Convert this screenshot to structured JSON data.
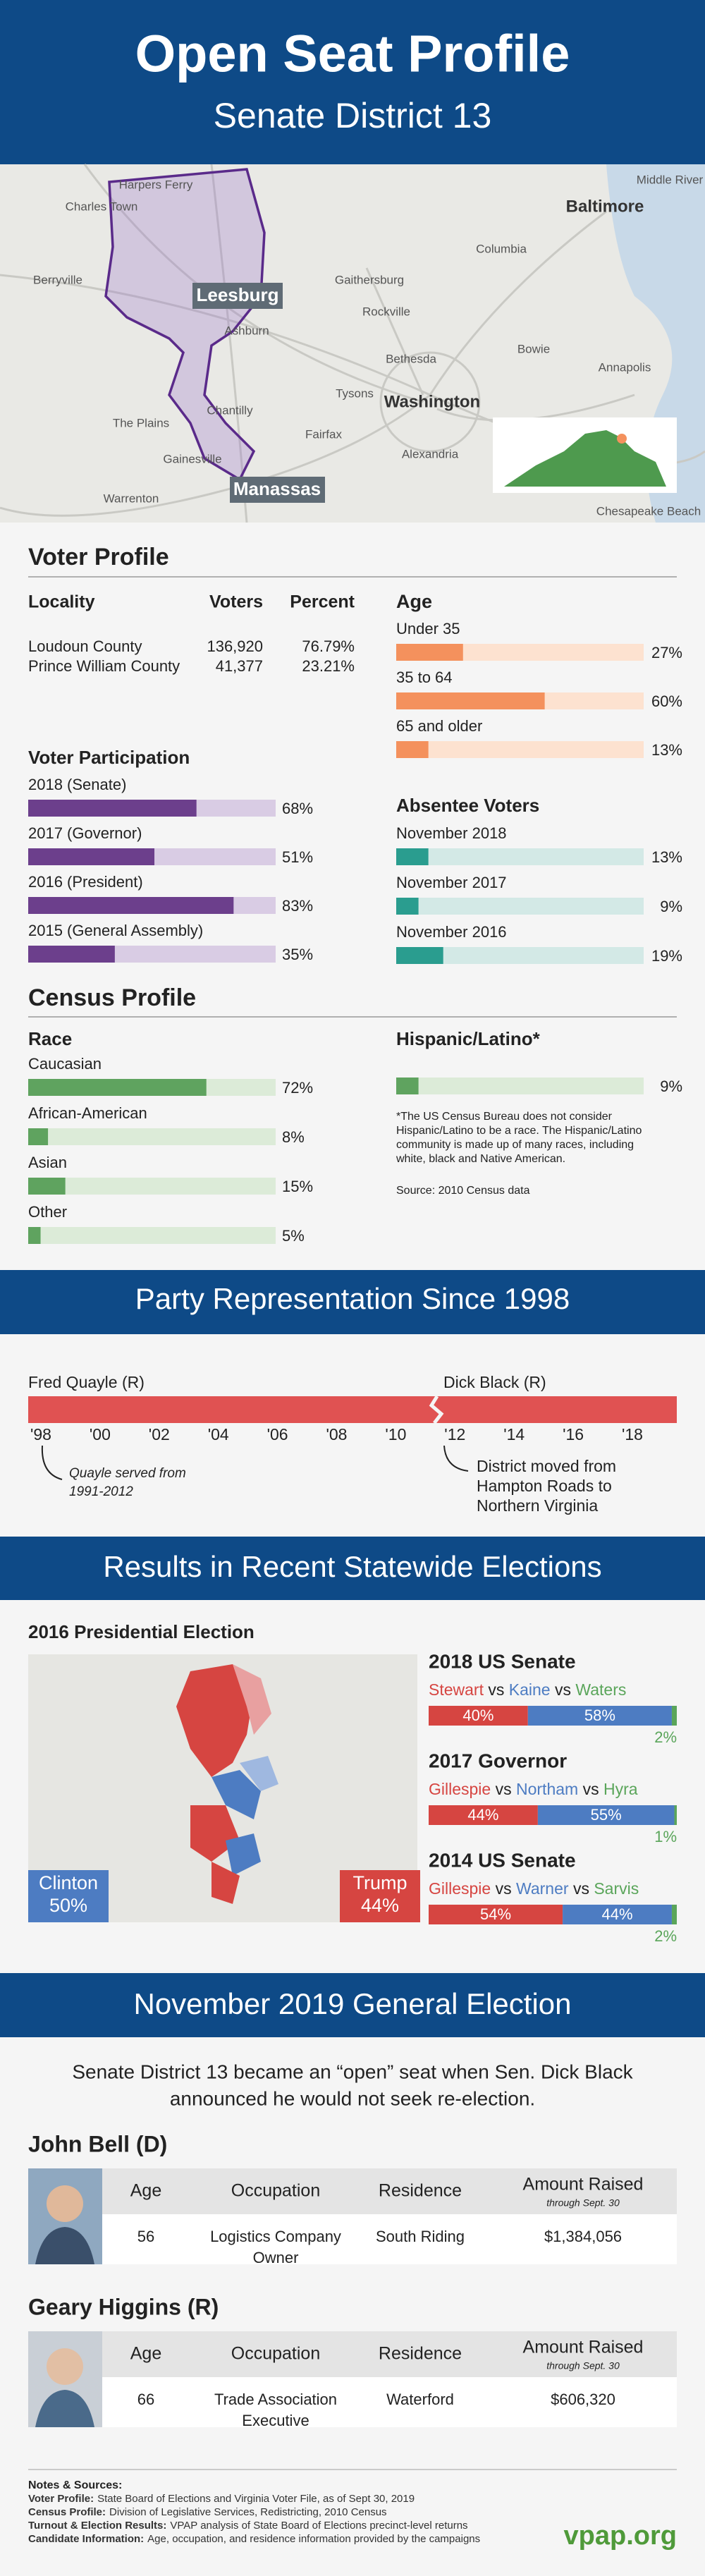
{
  "header": {
    "title": "Open Seat Profile",
    "subtitle": "Senate District 13"
  },
  "district_map": {
    "labels": [
      "Harpers Ferry",
      "Charles Town",
      "Middle River",
      "Baltimore",
      "Columbia",
      "Berryville",
      "Ashburn",
      "Gaithersburg",
      "Rockville",
      "Bowie",
      "Annapolis",
      "Bethesda",
      "Washington",
      "Chantilly",
      "Tysons",
      "Fairfax",
      "The Plains",
      "Gainesville",
      "Alexandria",
      "Warrenton",
      "Chesapeake Beach"
    ],
    "callouts": [
      "Leesburg",
      "Manassas"
    ]
  },
  "voter_profile": {
    "title": "Voter Profile",
    "locality": {
      "headers": [
        "Locality",
        "Voters",
        "Percent"
      ],
      "rows": [
        [
          "Loudoun County",
          "136,920",
          "76.79%"
        ],
        [
          "Prince William County",
          "41,377",
          "23.21%"
        ]
      ]
    },
    "age": {
      "title": "Age",
      "color": "#f4915d",
      "track": "#fde2d0",
      "bars": [
        {
          "label": "Under 35",
          "value": 27,
          "value_label": "27%"
        },
        {
          "label": "35 to 64",
          "value": 60,
          "value_label": "60%"
        },
        {
          "label": "65 and older",
          "value": 13,
          "value_label": "13%"
        }
      ]
    },
    "participation": {
      "title": "Voter Participation",
      "color": "#6c3f8c",
      "track": "#d9cce4",
      "bars": [
        {
          "label": "2018 (Senate)",
          "value": 68,
          "value_label": "68%"
        },
        {
          "label": "2017 (Governor)",
          "value": 51,
          "value_label": "51%"
        },
        {
          "label": "2016 (President)",
          "value": 83,
          "value_label": "83%"
        },
        {
          "label": "2015 (General Assembly)",
          "value": 35,
          "value_label": "35%"
        }
      ]
    },
    "absentee": {
      "title": "Absentee Voters",
      "color": "#2a9d8f",
      "track": "#d3e9e6",
      "bars": [
        {
          "label": "November 2018",
          "value": 13,
          "value_label": "13%"
        },
        {
          "label": "November 2017",
          "value": 9,
          "value_label": "9%"
        },
        {
          "label": "November 2016",
          "value": 19,
          "value_label": "19%"
        }
      ]
    }
  },
  "census_profile": {
    "title": "Census Profile",
    "race": {
      "title": "Race",
      "color": "#5fa35f",
      "track": "#dcebd8",
      "bars": [
        {
          "label": "Caucasian",
          "value": 72,
          "value_label": "72%"
        },
        {
          "label": "African-American",
          "value": 8,
          "value_label": "8%"
        },
        {
          "label": "Asian",
          "value": 15,
          "value_label": "15%"
        },
        {
          "label": "Other",
          "value": 5,
          "value_label": "5%"
        }
      ]
    },
    "hispanic": {
      "title": "Hispanic/Latino*",
      "color": "#5fa35f",
      "track": "#dcebd8",
      "value": 9,
      "value_label": "9%",
      "note": [
        "*The US Census Bureau does not consider",
        "Hispanic/Latino to be a race. The Hispanic/Latino",
        "community is made up of many races, including",
        "white, black and Native American."
      ],
      "source": "Source: 2010 Census data"
    }
  },
  "party_representation": {
    "title": "Party Representation Since 1998",
    "members": [
      "Fred Quayle (R)",
      "Dick Black (R)"
    ],
    "years": [
      "'98",
      "'00",
      "'02",
      "'04",
      "'06",
      "'08",
      "'10",
      "'12",
      "'14",
      "'16",
      "'18"
    ],
    "notes": [
      [
        "Quayle served from",
        "1991-2012"
      ],
      [
        "District moved from",
        "Hampton Roads to",
        "Northern Virginia"
      ]
    ]
  },
  "statewide_results": {
    "title": "Results in Recent Statewide Elections",
    "map": {
      "title": "2016 Presidential Election",
      "boxes": [
        {
          "name": "Clinton",
          "label": "50%",
          "color": "#4d7cc2"
        },
        {
          "name": "Trump",
          "label": "44%",
          "color": "#d64541"
        }
      ]
    },
    "separator": "vs",
    "races": [
      {
        "title": "2018 US Senate",
        "candidates": [
          {
            "name": "Stewart",
            "color": "#d64541",
            "value": 40,
            "value_label": "40%"
          },
          {
            "name": "Kaine",
            "color": "#4d7cc2",
            "value": 58,
            "value_label": "58%"
          },
          {
            "name": "Waters",
            "color": "#5aa55a",
            "value": 2,
            "value_label": "2%"
          }
        ]
      },
      {
        "title": "2017 Governor",
        "candidates": [
          {
            "name": "Gillespie",
            "color": "#d64541",
            "value": 44,
            "value_label": "44%"
          },
          {
            "name": "Northam",
            "color": "#4d7cc2",
            "value": 55,
            "value_label": "55%"
          },
          {
            "name": "Hyra",
            "color": "#5aa55a",
            "value": 1,
            "value_label": "1%"
          }
        ]
      },
      {
        "title": "2014 US Senate",
        "candidates": [
          {
            "name": "Gillespie",
            "color": "#d64541",
            "value": 54,
            "value_label": "54%"
          },
          {
            "name": "Warner",
            "color": "#4d7cc2",
            "value": 44,
            "value_label": "44%"
          },
          {
            "name": "Sarvis",
            "color": "#5aa55a",
            "value": 2,
            "value_label": "2%"
          }
        ]
      }
    ]
  },
  "general_election": {
    "title": "November 2019 General Election",
    "intro": [
      "Senate District 13 became an “open” seat when Sen. Dick Black",
      "announced he would not seek re-election."
    ],
    "headers": [
      "Age",
      "Occupation",
      "Residence",
      "Amount Raised"
    ],
    "amount_note": "through Sept. 30",
    "candidates": [
      {
        "name": "John Bell (D)",
        "age": 56,
        "occupation": [
          "Logistics Company",
          "Owner"
        ],
        "residence": "South Riding",
        "amount": "$1,384,056"
      },
      {
        "name": "Geary Higgins (R)",
        "age": 66,
        "occupation": [
          "Trade Association",
          "Executive"
        ],
        "residence": "Waterford",
        "amount": "$606,320"
      }
    ]
  },
  "notes": {
    "title": "Notes & Sources:",
    "items": [
      {
        "label": "Voter Profile:",
        "text": "State Board of Elections and Virginia Voter File, as of Sept 30, 2019"
      },
      {
        "label": "Census Profile:",
        "text": "Division of Legislative Services, Redistricting, 2010 Census"
      },
      {
        "label": "Turnout & Election Results:",
        "text": "VPAP analysis of State Board of Elections precinct-level returns"
      },
      {
        "label": "Candidate Information:",
        "text": "Age, occupation, and residence information provided by the campaigns"
      }
    ],
    "brand": "vpap.org"
  }
}
